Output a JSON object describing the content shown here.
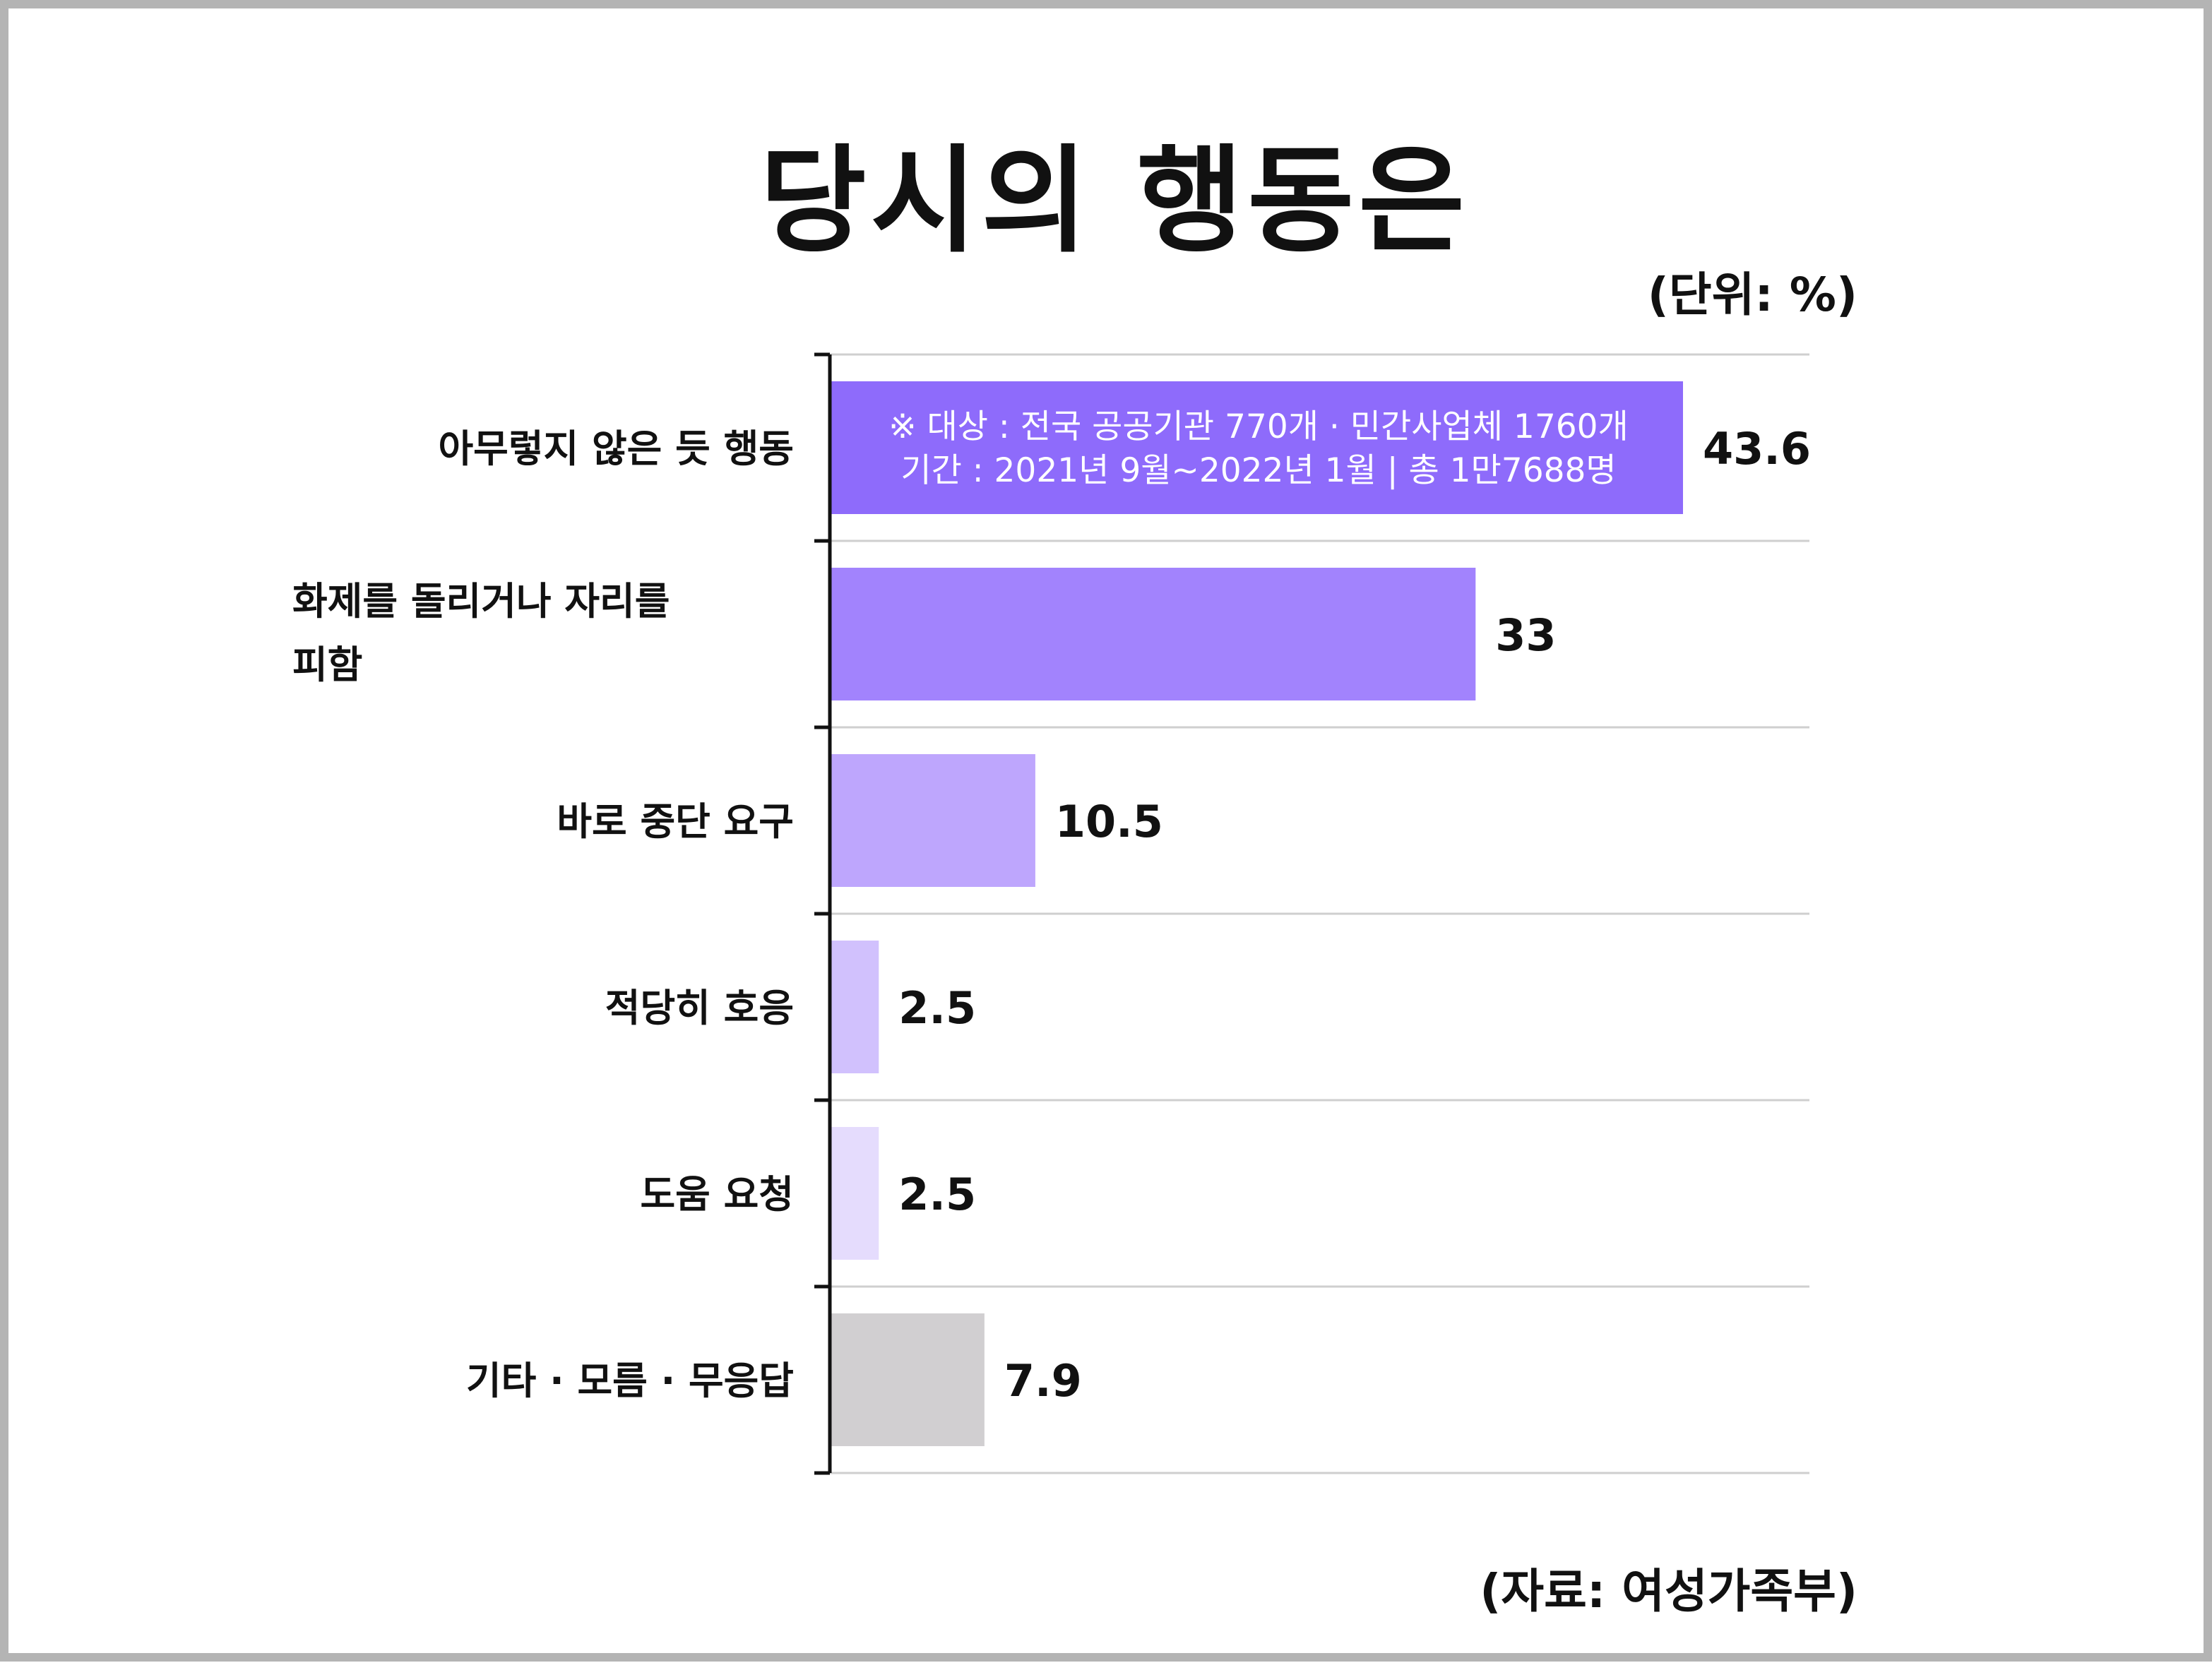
{
  "title": "당시의 행동은",
  "unit_label": "(단위: %)",
  "source_label": "(자료: 여성가족부)",
  "note": {
    "line1": "※ 대상 : 전국 공공기관 770개 · 민간사업체 1760개",
    "line2": "기간 : 2021년 9월~2022년 1월 | 총 1만7688명"
  },
  "chart_data": {
    "type": "bar",
    "orientation": "horizontal",
    "title": "당시의 행동은",
    "xlabel": "",
    "ylabel": "",
    "unit": "%",
    "grid": true,
    "xlim": [
      0,
      50
    ],
    "categories": [
      "아무렇지 않은 듯 행동",
      "화제를 돌리거나 자리를 피함",
      "바로 중단 요구",
      "적당히 호응",
      "도움 요청",
      "기타 · 모름 · 무응답"
    ],
    "category_lines": [
      [
        "아무렇지 않은 듯 행동"
      ],
      [
        "화제를  돌리거나  자리를",
        "피함"
      ],
      [
        "바로 중단 요구"
      ],
      [
        "적당히 호응"
      ],
      [
        "도움 요청"
      ],
      [
        "기타 · 모름 · 무응답"
      ]
    ],
    "values": [
      43.6,
      33,
      10.5,
      2.5,
      2.5,
      7.9
    ],
    "value_labels": [
      "43.6",
      "33",
      "10.5",
      "2.5",
      "2.5",
      "7.9"
    ],
    "colors": [
      "#8e6bfb",
      "#a283fd",
      "#bea6fd",
      "#d1c1fd",
      "#e5dcfd",
      "#d1cfd1"
    ]
  }
}
